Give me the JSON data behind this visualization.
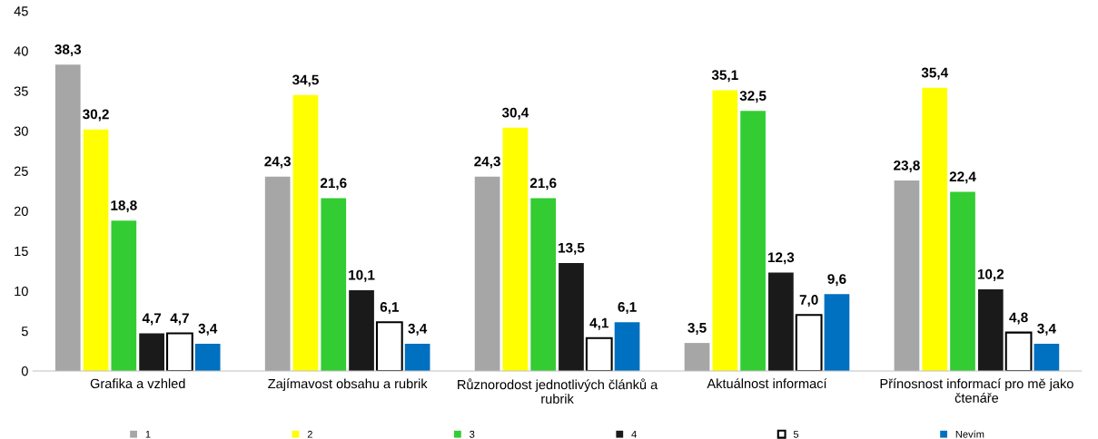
{
  "chart_data": {
    "type": "bar",
    "categories": [
      "Grafika a vzhled",
      "Zajímavost obsahu a rubrik",
      "Různorodost jednotlivých článků a rubrik",
      "Aktuálnost informací",
      "Přínosnost informací pro mě jako čtenáře"
    ],
    "series": [
      {
        "name": "1",
        "color": "#a6a6a6",
        "values": [
          38.3,
          24.3,
          24.3,
          3.5,
          23.8
        ],
        "value_labels": [
          "38,3",
          "24,3",
          "24,3",
          "3,5",
          "23,8"
        ]
      },
      {
        "name": "2",
        "color": "#ffff00",
        "values": [
          30.2,
          34.5,
          30.4,
          35.1,
          35.4
        ],
        "value_labels": [
          "30,2",
          "34,5",
          "30,4",
          "35,1",
          "35,4"
        ]
      },
      {
        "name": "3",
        "color": "#33cc33",
        "values": [
          18.8,
          21.6,
          21.6,
          32.5,
          22.4
        ],
        "value_labels": [
          "18,8",
          "21,6",
          "21,6",
          "32,5",
          "22,4"
        ]
      },
      {
        "name": "4",
        "color": "#1a1a1a",
        "values": [
          4.7,
          10.1,
          13.5,
          12.3,
          10.2
        ],
        "value_labels": [
          "4,7",
          "10,1",
          "13,5",
          "12,3",
          "10,2"
        ]
      },
      {
        "name": "5",
        "color": "#ffffff",
        "values": [
          4.7,
          6.1,
          4.1,
          7.0,
          4.8
        ],
        "value_labels": [
          "4,7",
          "6,1",
          "4,1",
          "7,0",
          "4,8"
        ]
      },
      {
        "name": "Nevím",
        "color": "#0070c0",
        "values": [
          3.4,
          3.4,
          6.1,
          9.6,
          3.4
        ],
        "value_labels": [
          "3,4",
          "3,4",
          "6,1",
          "9,6",
          "3,4"
        ]
      }
    ],
    "ylim": [
      0,
      45
    ],
    "yticks": [
      0,
      5,
      10,
      15,
      20,
      25,
      30,
      35,
      40,
      45
    ],
    "grid": false,
    "legend": "bottom"
  }
}
